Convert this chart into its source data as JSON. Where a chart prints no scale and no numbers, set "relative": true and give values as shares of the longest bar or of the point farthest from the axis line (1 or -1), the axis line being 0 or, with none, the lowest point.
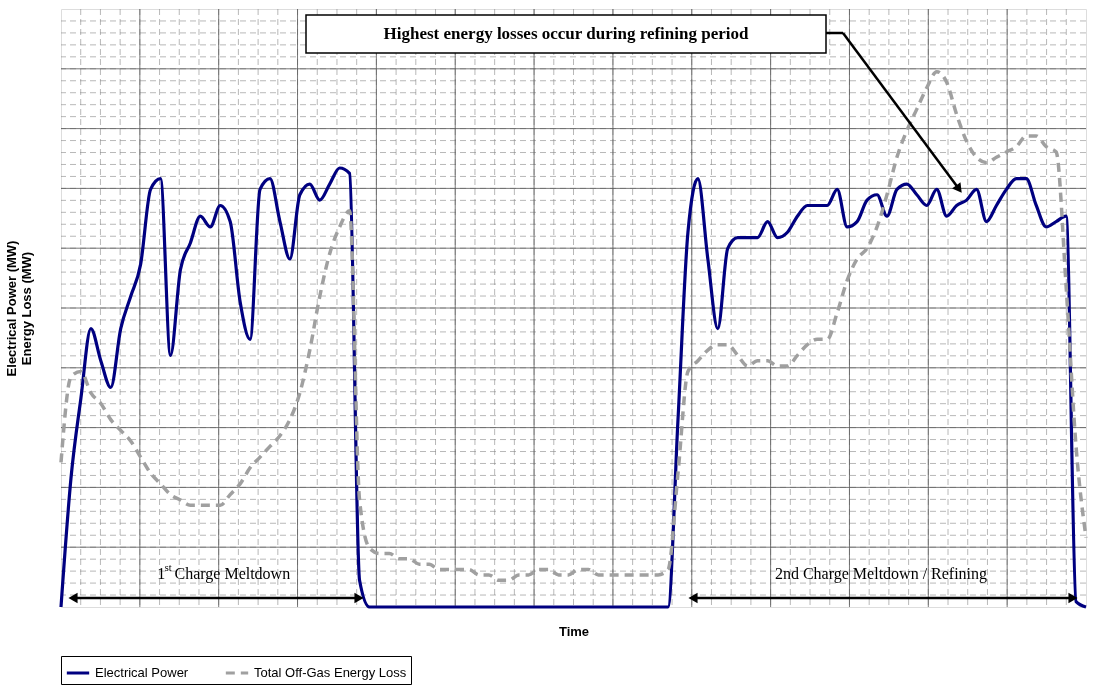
{
  "chart_data": {
    "type": "line",
    "relative": true,
    "xlabel": "Time",
    "ylabel": "Electrical Power (MW)\nEnergy Loss (MW)",
    "grid": true,
    "tick_labels": false,
    "legend": "bottom",
    "categories": [
      null,
      null,
      null,
      null,
      null,
      null,
      null,
      null,
      null,
      null,
      null,
      null,
      null,
      null,
      null,
      null,
      null,
      null,
      null,
      null,
      null,
      null,
      null,
      null,
      null,
      null,
      null,
      null,
      null,
      null,
      null,
      null,
      null,
      null,
      null,
      null,
      null,
      null,
      null,
      null,
      null,
      null,
      null,
      null,
      null,
      null,
      null,
      null,
      null,
      null,
      null,
      null,
      null,
      null,
      null,
      null,
      null,
      null,
      null,
      null,
      null,
      null,
      null,
      null,
      null,
      null,
      null,
      null,
      null,
      null,
      null,
      null,
      null,
      null,
      null,
      null,
      null,
      null,
      null,
      null,
      null,
      null,
      null,
      null,
      null,
      null,
      null,
      null,
      null,
      null,
      null,
      null,
      null,
      null,
      null,
      null,
      null,
      null,
      null,
      null,
      null,
      null,
      null,
      null
    ],
    "series": [
      {
        "name": "Electrical Power",
        "color": "#000080",
        "line_style": "solid",
        "values": [
          0,
          0.24,
          0.39,
          0.52,
          0.46,
          0.41,
          0.52,
          0.58,
          0.64,
          0.78,
          0.8,
          0.47,
          0.63,
          0.68,
          0.73,
          0.71,
          0.75,
          0.72,
          0.57,
          0.5,
          0.78,
          0.8,
          0.72,
          0.65,
          0.77,
          0.79,
          0.76,
          0.79,
          0.82,
          0.81,
          0.05,
          0,
          0,
          0,
          0,
          0,
          0,
          0,
          0,
          0,
          0,
          0,
          0,
          0,
          0,
          0,
          0,
          0,
          0,
          0,
          0,
          0,
          0,
          0,
          0,
          0,
          0,
          0,
          0,
          0,
          0,
          0,
          0.35,
          0.7,
          0.8,
          0.65,
          0.52,
          0.67,
          0.69,
          0.69,
          0.69,
          0.72,
          0.69,
          0.7,
          0.73,
          0.75,
          0.75,
          0.75,
          0.78,
          0.71,
          0.72,
          0.76,
          0.77,
          0.73,
          0.78,
          0.79,
          0.77,
          0.75,
          0.78,
          0.73,
          0.75,
          0.76,
          0.78,
          0.72,
          0.75,
          0.78,
          0.8,
          0.8,
          0.75,
          0.71,
          0.72,
          0.73,
          0.01,
          0
        ]
      },
      {
        "name": "Total Off-Gas Energy Loss",
        "color": "#a0a0a0",
        "line_style": "dashed",
        "values": [
          0.27,
          0.43,
          0.44,
          0.4,
          0.38,
          0.35,
          0.33,
          0.31,
          0.28,
          0.25,
          0.23,
          0.21,
          0.2,
          0.19,
          0.19,
          0.19,
          0.19,
          0.21,
          0.23,
          0.26,
          0.28,
          0.3,
          0.32,
          0.35,
          0.4,
          0.48,
          0.58,
          0.66,
          0.71,
          0.74,
          0.2,
          0.11,
          0.1,
          0.1,
          0.09,
          0.09,
          0.08,
          0.08,
          0.07,
          0.07,
          0.07,
          0.07,
          0.06,
          0.06,
          0.05,
          0.05,
          0.06,
          0.06,
          0.07,
          0.07,
          0.06,
          0.06,
          0.07,
          0.07,
          0.06,
          0.06,
          0.06,
          0.06,
          0.06,
          0.06,
          0.06,
          0.07,
          0.25,
          0.44,
          0.46,
          0.48,
          0.49,
          0.49,
          0.47,
          0.45,
          0.46,
          0.46,
          0.45,
          0.45,
          0.47,
          0.49,
          0.5,
          0.5,
          0.55,
          0.61,
          0.65,
          0.67,
          0.71,
          0.77,
          0.84,
          0.89,
          0.93,
          0.97,
          1.0,
          0.98,
          0.92,
          0.87,
          0.84,
          0.83,
          0.84,
          0.85,
          0.86,
          0.88,
          0.88,
          0.86,
          0.85,
          0.6,
          0.3,
          0.13
        ]
      }
    ],
    "annotations": [
      "Highest energy losses occur during refining period",
      "1$^{st}$ Charge Meltdown",
      "2nd Charge Meltdown / Refining"
    ]
  }
}
